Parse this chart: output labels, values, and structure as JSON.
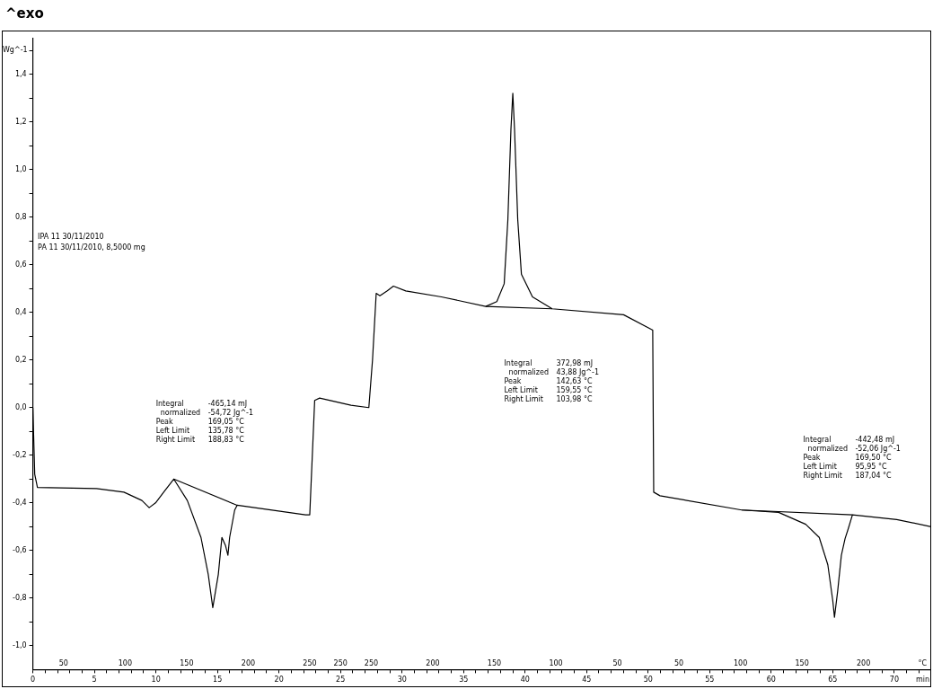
{
  "chart_data": {
    "type": "line",
    "title": "^exo",
    "ylabel": "Wg^-1",
    "xlabel": "min",
    "xlim": [
      0,
      73
    ],
    "ylim": [
      -1.1,
      1.55
    ],
    "xticks": [
      0,
      {
        "value": 1,
        "label": null
      },
      {
        "value": 2,
        "label": null
      },
      {
        "value": 3,
        "label": null
      },
      {
        "value": 4,
        "label": null
      },
      5,
      {
        "value": 6,
        "label": null
      },
      {
        "value": 7,
        "label": null
      },
      {
        "value": 8,
        "label": null
      },
      {
        "value": 9,
        "label": null
      },
      10,
      {
        "value": 11,
        "label": null
      },
      {
        "value": 12,
        "label": null
      },
      {
        "value": 13,
        "label": null
      },
      {
        "value": 14,
        "label": null
      },
      15,
      {
        "value": 16,
        "label": null
      },
      {
        "value": 17,
        "label": null
      },
      {
        "value": 18,
        "label": null
      },
      {
        "value": 19,
        "label": null
      },
      20,
      {
        "value": 21,
        "label": null
      },
      {
        "value": 22,
        "label": null
      },
      {
        "value": 23,
        "label": null
      },
      {
        "value": 24,
        "label": null
      },
      25,
      {
        "value": 26,
        "label": null
      },
      {
        "value": 27,
        "label": null
      },
      {
        "value": 28,
        "label": null
      },
      {
        "value": 29,
        "label": null
      },
      30,
      {
        "value": 31,
        "label": null
      },
      {
        "value": 32,
        "label": null
      },
      {
        "value": 33,
        "label": null
      },
      {
        "value": 34,
        "label": null
      },
      35,
      {
        "value": 36,
        "label": null
      },
      {
        "value": 37,
        "label": null
      },
      {
        "value": 38,
        "label": null
      },
      {
        "value": 39,
        "label": null
      },
      40,
      {
        "value": 41,
        "label": null
      },
      {
        "value": 42,
        "label": null
      },
      {
        "value": 43,
        "label": null
      },
      {
        "value": 44,
        "label": null
      },
      45,
      {
        "value": 46,
        "label": null
      },
      {
        "value": 47,
        "label": null
      },
      {
        "value": 48,
        "label": null
      },
      {
        "value": 49,
        "label": null
      },
      50,
      {
        "value": 51,
        "label": null
      },
      {
        "value": 52,
        "label": null
      },
      {
        "value": 53,
        "label": null
      },
      {
        "value": 54,
        "label": null
      },
      55,
      {
        "value": 56,
        "label": null
      },
      {
        "value": 57,
        "label": null
      },
      {
        "value": 58,
        "label": null
      },
      {
        "value": 59,
        "label": null
      },
      60,
      {
        "value": 61,
        "label": null
      },
      {
        "value": 62,
        "label": null
      },
      {
        "value": 63,
        "label": null
      },
      {
        "value": 64,
        "label": null
      },
      65,
      {
        "value": 66,
        "label": null
      },
      {
        "value": 67,
        "label": null
      },
      {
        "value": 68,
        "label": null
      },
      {
        "value": 69,
        "label": null
      },
      70,
      {
        "value": 71,
        "label": null
      },
      {
        "value": 72,
        "label": null
      }
    ],
    "yticks": [
      {
        "value": -1.0,
        "label": "-1,0"
      },
      {
        "value": -0.9,
        "label": null
      },
      {
        "value": -0.8,
        "label": "-0,8"
      },
      {
        "value": -0.7,
        "label": null
      },
      {
        "value": -0.6,
        "label": "-0,6"
      },
      {
        "value": -0.5,
        "label": null
      },
      {
        "value": -0.4,
        "label": "-0,4"
      },
      {
        "value": -0.3,
        "label": null
      },
      {
        "value": -0.2,
        "label": "-0,2"
      },
      {
        "value": -0.1,
        "label": null
      },
      {
        "value": 0,
        "label": "0,0"
      },
      {
        "value": 0.1,
        "label": null
      },
      {
        "value": 0.2,
        "label": "0,2"
      },
      {
        "value": 0.3,
        "label": null
      },
      {
        "value": 0.4,
        "label": "0,4"
      },
      {
        "value": 0.5,
        "label": null
      },
      {
        "value": 0.6,
        "label": "0,6"
      },
      {
        "value": 0.7,
        "label": null
      },
      {
        "value": 0.8,
        "label": "0,8"
      },
      {
        "value": 0.9,
        "label": null
      },
      {
        "value": 1.0,
        "label": "1,0"
      },
      {
        "value": 1.1,
        "label": null
      },
      {
        "value": 1.2,
        "label": "1,2"
      },
      {
        "value": 1.3,
        "label": null
      },
      {
        "value": 1.4,
        "label": "1,4"
      },
      {
        "value": 1.5,
        "label": null
      }
    ],
    "grid": false,
    "legend": false,
    "marker": "none",
    "line_style": "solid",
    "series": [
      {
        "color": "#000000",
        "x": [
          0,
          0.15,
          0.37,
          5.17,
          7.4,
          8.86,
          9.45,
          9.97,
          10.7,
          11.45,
          12.55,
          13.66,
          14.25,
          14.62,
          15.07,
          15.36,
          15.66,
          15.85,
          15.99,
          16.4,
          16.6,
          22.16,
          22.5,
          22.9,
          23.3,
          25.85,
          27.3,
          27.6,
          27.9,
          28.2,
          28.8,
          29.3,
          30.3,
          33.2,
          36.8,
          37.7,
          38.3,
          38.6,
          38.85,
          39.0,
          39.14,
          39.4,
          39.7,
          40.6,
          42.2,
          48.0,
          50.2,
          50.37,
          50.45,
          50.96,
          57.6,
          60.6,
          62.8,
          63.9,
          64.6,
          65.0,
          65.14,
          65.4,
          65.7,
          66.0,
          66.25,
          66.6,
          70.2,
          73
        ],
        "values": [
          0,
          -0.28,
          -0.335,
          -0.34,
          -0.355,
          -0.39,
          -0.42,
          -0.4,
          -0.35,
          -0.3,
          -0.39,
          -0.545,
          -0.7,
          -0.84,
          -0.7,
          -0.545,
          -0.58,
          -0.62,
          -0.545,
          -0.43,
          -0.41,
          -0.45,
          -0.45,
          0.03,
          0.04,
          0.01,
          0,
          0.2,
          0.48,
          0.47,
          0.49,
          0.51,
          0.49,
          0.465,
          0.425,
          0.445,
          0.52,
          0.79,
          1.17,
          1.32,
          1.17,
          0.79,
          0.56,
          0.465,
          0.415,
          0.39,
          0.33,
          0.325,
          -0.355,
          -0.37,
          -0.43,
          -0.44,
          -0.49,
          -0.545,
          -0.66,
          -0.81,
          -0.88,
          -0.77,
          -0.62,
          -0.55,
          -0.51,
          -0.45,
          -0.47,
          -0.5
        ]
      },
      {
        "color": "#000000",
        "x": [
          11.45,
          16.6
        ],
        "values": [
          -0.3,
          -0.41
        ]
      },
      {
        "color": "#000000",
        "x": [
          36.8,
          42.2
        ],
        "values": [
          0.425,
          0.415
        ]
      },
      {
        "color": "#000000",
        "x": [
          57.6,
          66.6
        ],
        "values": [
          -0.43,
          -0.45
        ]
      }
    ],
    "annotations": [
      "IPA 11 30/11/2010",
      "PA 11 30/11/2010, 8,5000 mg",
      "Integral\t-465,14 mJ\n  normalized\t-54,72 Jg^-1\nPeak\t169,05 °C\nLeft Limit\t135,78 °C\nRight Limit\t188,83 °C",
      "Integral\t372,98 mJ\n  normalized\t43,88 Jg^-1\nPeak\t142,63 °C\nLeft Limit\t159,55 °C\nRight Limit\t103,98 °C",
      "Integral\t-442,48 mJ\n  normalized\t-52,06 Jg^-1\nPeak\t169,50 °C\nLeft Limit\t95,95 °C\nRight Limit\t187,04 °C",
      "50",
      "100",
      "150",
      "200",
      "250",
      "250",
      "250",
      "200",
      "150",
      "100",
      "50",
      "50",
      "100",
      "150",
      "200",
      "°C"
    ]
  }
}
